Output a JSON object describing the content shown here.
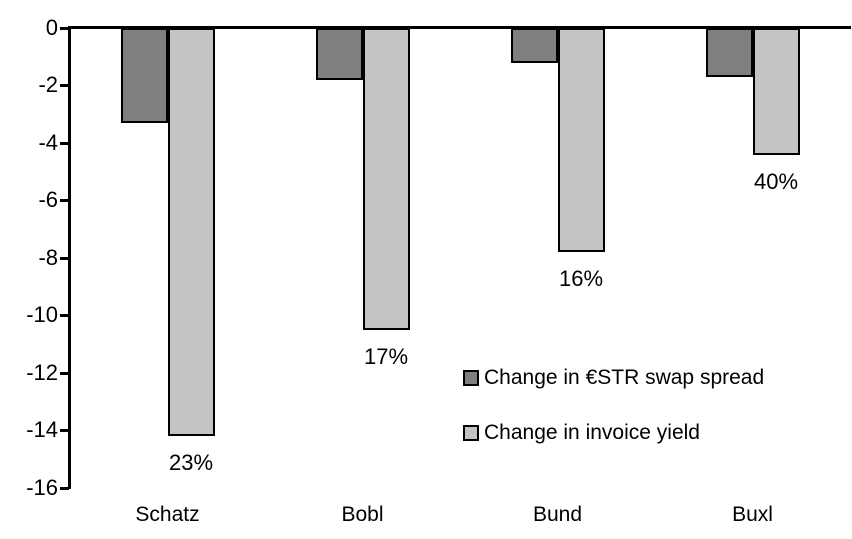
{
  "chart_data": {
    "type": "bar",
    "title": "",
    "xlabel": "",
    "ylabel": "",
    "categories": [
      "Schatz",
      "Bobl",
      "Bund",
      "Buxl"
    ],
    "series": [
      {
        "name": "Change in €STR swap spread",
        "color": "#7F7F7F",
        "values": [
          -3.3,
          -1.8,
          -1.2,
          -1.7
        ]
      },
      {
        "name": "Change in invoice yield",
        "color": "#C4C4C4",
        "values": [
          -14.2,
          -10.5,
          -7.8,
          -4.4
        ]
      }
    ],
    "bar_labels": {
      "attached_to_series": "Change in invoice yield",
      "values": [
        "23%",
        "17%",
        "16%",
        "40%"
      ]
    },
    "ylim": [
      -16,
      0
    ],
    "yticks": [
      0,
      -2,
      -4,
      -6,
      -8,
      -10,
      -12,
      -14,
      -16
    ],
    "grid": false,
    "legend_position": "inside-bottom-right",
    "axis_color": "#000000",
    "background_color": "#FFFFFF"
  }
}
